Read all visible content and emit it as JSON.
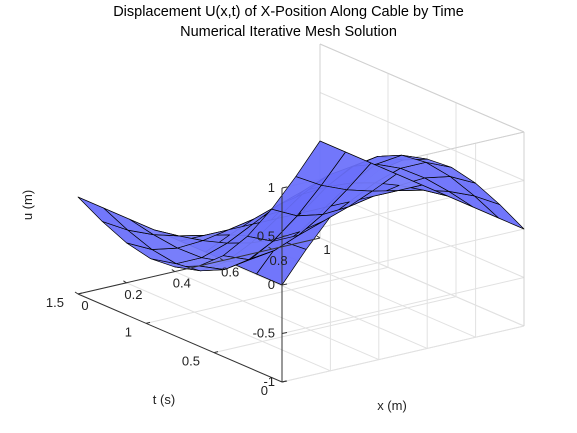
{
  "chart_data": {
    "type": "surface",
    "title": "Displacement U(x,t) of X-Position Along Cable by Time",
    "subtitle": "Numerical Iterative Mesh Solution",
    "xlabel": "x (m)",
    "ylabel": "t (s)",
    "zlabel": "u (m)",
    "xlim": [
      0,
      1
    ],
    "ylim": [
      0,
      1.5
    ],
    "zlim": [
      -1,
      1
    ],
    "xticks": [
      "0",
      "0.2",
      "0.4",
      "0.6",
      "0.8",
      "1"
    ],
    "yticks": [
      "0",
      "0.5",
      "1",
      "1.5"
    ],
    "zticks": [
      "-1",
      "-0.5",
      "0",
      "0.5",
      "1"
    ],
    "grid": true,
    "face_color": "#6f74fb",
    "edge_color": "#000000",
    "x": [
      0,
      0.1,
      0.2,
      0.3,
      0.4,
      0.5,
      0.6,
      0.7,
      0.8,
      0.9,
      1.0
    ],
    "t": [
      0,
      0.1875,
      0.375,
      0.5625,
      0.75,
      0.9375,
      1.125,
      1.3125,
      1.5
    ],
    "u": [
      [
        0,
        0.309,
        0.5878,
        0.809,
        0.9511,
        1.0,
        0.9511,
        0.809,
        0.5878,
        0.309,
        0
      ],
      [
        0,
        0.2855,
        0.543,
        0.7474,
        0.8787,
        0.9239,
        0.8787,
        0.7474,
        0.543,
        0.2855,
        0
      ],
      [
        0,
        0.2185,
        0.4156,
        0.5721,
        0.6725,
        0.7071,
        0.6725,
        0.5721,
        0.4156,
        0.2185,
        0
      ],
      [
        0,
        0.1182,
        0.225,
        0.3096,
        0.364,
        0.3827,
        0.364,
        0.3096,
        0.225,
        0.1182,
        0
      ],
      [
        0,
        0.0,
        0.0,
        0.0,
        0.0,
        0.0,
        0.0,
        0.0,
        0.0,
        0.0,
        0
      ],
      [
        0,
        -0.1182,
        -0.225,
        -0.3096,
        -0.364,
        -0.3827,
        -0.364,
        -0.3096,
        -0.225,
        -0.1182,
        0
      ],
      [
        0,
        -0.2185,
        -0.4156,
        -0.5721,
        -0.6725,
        -0.7071,
        -0.6725,
        -0.5721,
        -0.4156,
        -0.2185,
        0
      ],
      [
        0,
        -0.2855,
        -0.543,
        -0.7474,
        -0.8787,
        -0.9239,
        -0.8787,
        -0.7474,
        -0.543,
        -0.2855,
        0
      ],
      [
        0,
        -0.309,
        -0.5878,
        -0.809,
        -0.9511,
        -1.0,
        -0.9511,
        -0.809,
        -0.5878,
        -0.309,
        0
      ]
    ]
  }
}
